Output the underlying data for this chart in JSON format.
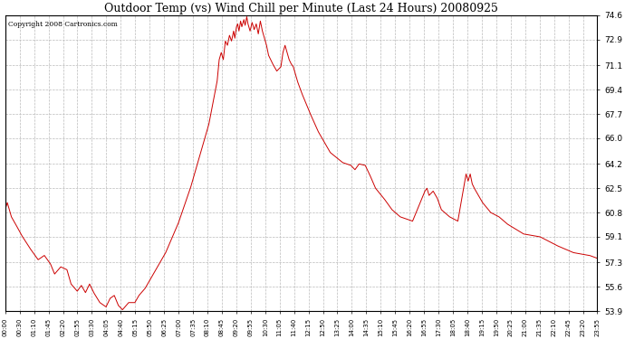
{
  "title": "Outdoor Temp (vs) Wind Chill per Minute (Last 24 Hours) 20080925",
  "copyright": "Copyright 2008 Cartronics.com",
  "line_color": "#cc0000",
  "background_color": "#ffffff",
  "grid_color": "#bbbbbb",
  "ylim": [
    53.9,
    74.6
  ],
  "yticks": [
    53.9,
    55.6,
    57.3,
    59.1,
    60.8,
    62.5,
    64.2,
    66.0,
    67.7,
    69.4,
    71.1,
    72.9,
    74.6
  ],
  "xtick_labels": [
    "00:00",
    "00:30",
    "01:10",
    "01:45",
    "02:20",
    "02:55",
    "03:30",
    "04:05",
    "04:40",
    "05:15",
    "05:50",
    "06:25",
    "07:00",
    "07:35",
    "08:10",
    "08:45",
    "09:20",
    "09:55",
    "10:30",
    "11:05",
    "11:40",
    "12:15",
    "12:50",
    "13:25",
    "14:00",
    "14:35",
    "15:10",
    "15:45",
    "16:20",
    "16:55",
    "17:30",
    "18:05",
    "18:40",
    "19:15",
    "19:50",
    "20:25",
    "21:00",
    "21:35",
    "22:10",
    "22:45",
    "23:20",
    "23:55"
  ],
  "curve_key_points": [
    [
      0,
      61.0
    ],
    [
      5,
      61.5
    ],
    [
      15,
      60.5
    ],
    [
      25,
      60.0
    ],
    [
      40,
      59.2
    ],
    [
      60,
      58.3
    ],
    [
      80,
      57.5
    ],
    [
      95,
      57.8
    ],
    [
      110,
      57.2
    ],
    [
      120,
      56.5
    ],
    [
      135,
      57.0
    ],
    [
      150,
      56.8
    ],
    [
      160,
      55.8
    ],
    [
      175,
      55.3
    ],
    [
      185,
      55.7
    ],
    [
      195,
      55.2
    ],
    [
      205,
      55.8
    ],
    [
      215,
      55.2
    ],
    [
      230,
      54.5
    ],
    [
      245,
      54.2
    ],
    [
      255,
      54.8
    ],
    [
      265,
      55.0
    ],
    [
      275,
      54.3
    ],
    [
      285,
      54.0
    ],
    [
      300,
      54.5
    ],
    [
      315,
      54.5
    ],
    [
      325,
      55.0
    ],
    [
      340,
      55.5
    ],
    [
      360,
      56.5
    ],
    [
      390,
      58.0
    ],
    [
      420,
      60.0
    ],
    [
      450,
      62.5
    ],
    [
      480,
      65.5
    ],
    [
      495,
      67.0
    ],
    [
      505,
      68.5
    ],
    [
      515,
      70.0
    ],
    [
      520,
      71.5
    ],
    [
      525,
      72.0
    ],
    [
      530,
      71.5
    ],
    [
      535,
      72.8
    ],
    [
      540,
      72.5
    ],
    [
      545,
      73.2
    ],
    [
      550,
      72.8
    ],
    [
      555,
      73.5
    ],
    [
      558,
      73.0
    ],
    [
      562,
      73.8
    ],
    [
      565,
      74.0
    ],
    [
      568,
      73.5
    ],
    [
      572,
      74.2
    ],
    [
      575,
      73.8
    ],
    [
      580,
      74.3
    ],
    [
      583,
      73.9
    ],
    [
      587,
      74.5
    ],
    [
      590,
      74.0
    ],
    [
      595,
      73.5
    ],
    [
      600,
      74.1
    ],
    [
      605,
      73.6
    ],
    [
      610,
      74.0
    ],
    [
      615,
      73.3
    ],
    [
      620,
      74.2
    ],
    [
      625,
      73.5
    ],
    [
      630,
      73.0
    ],
    [
      635,
      72.5
    ],
    [
      640,
      71.8
    ],
    [
      650,
      71.2
    ],
    [
      660,
      70.7
    ],
    [
      670,
      71.0
    ],
    [
      675,
      72.0
    ],
    [
      680,
      72.5
    ],
    [
      685,
      72.0
    ],
    [
      690,
      71.5
    ],
    [
      695,
      71.2
    ],
    [
      700,
      71.0
    ],
    [
      710,
      70.0
    ],
    [
      720,
      69.2
    ],
    [
      740,
      67.8
    ],
    [
      760,
      66.5
    ],
    [
      790,
      65.0
    ],
    [
      820,
      64.3
    ],
    [
      840,
      64.1
    ],
    [
      850,
      63.8
    ],
    [
      860,
      64.2
    ],
    [
      875,
      64.1
    ],
    [
      885,
      63.5
    ],
    [
      900,
      62.5
    ],
    [
      920,
      61.8
    ],
    [
      940,
      61.0
    ],
    [
      960,
      60.5
    ],
    [
      990,
      60.2
    ],
    [
      1020,
      62.3
    ],
    [
      1025,
      62.5
    ],
    [
      1030,
      62.0
    ],
    [
      1040,
      62.3
    ],
    [
      1050,
      61.8
    ],
    [
      1060,
      61.0
    ],
    [
      1080,
      60.5
    ],
    [
      1100,
      60.2
    ],
    [
      1120,
      63.5
    ],
    [
      1125,
      63.0
    ],
    [
      1130,
      63.5
    ],
    [
      1135,
      62.8
    ],
    [
      1140,
      62.5
    ],
    [
      1150,
      62.0
    ],
    [
      1160,
      61.5
    ],
    [
      1180,
      60.8
    ],
    [
      1200,
      60.5
    ],
    [
      1220,
      60.0
    ],
    [
      1260,
      59.3
    ],
    [
      1300,
      59.1
    ],
    [
      1340,
      58.5
    ],
    [
      1380,
      58.0
    ],
    [
      1420,
      57.8
    ],
    [
      1439,
      57.6
    ]
  ]
}
